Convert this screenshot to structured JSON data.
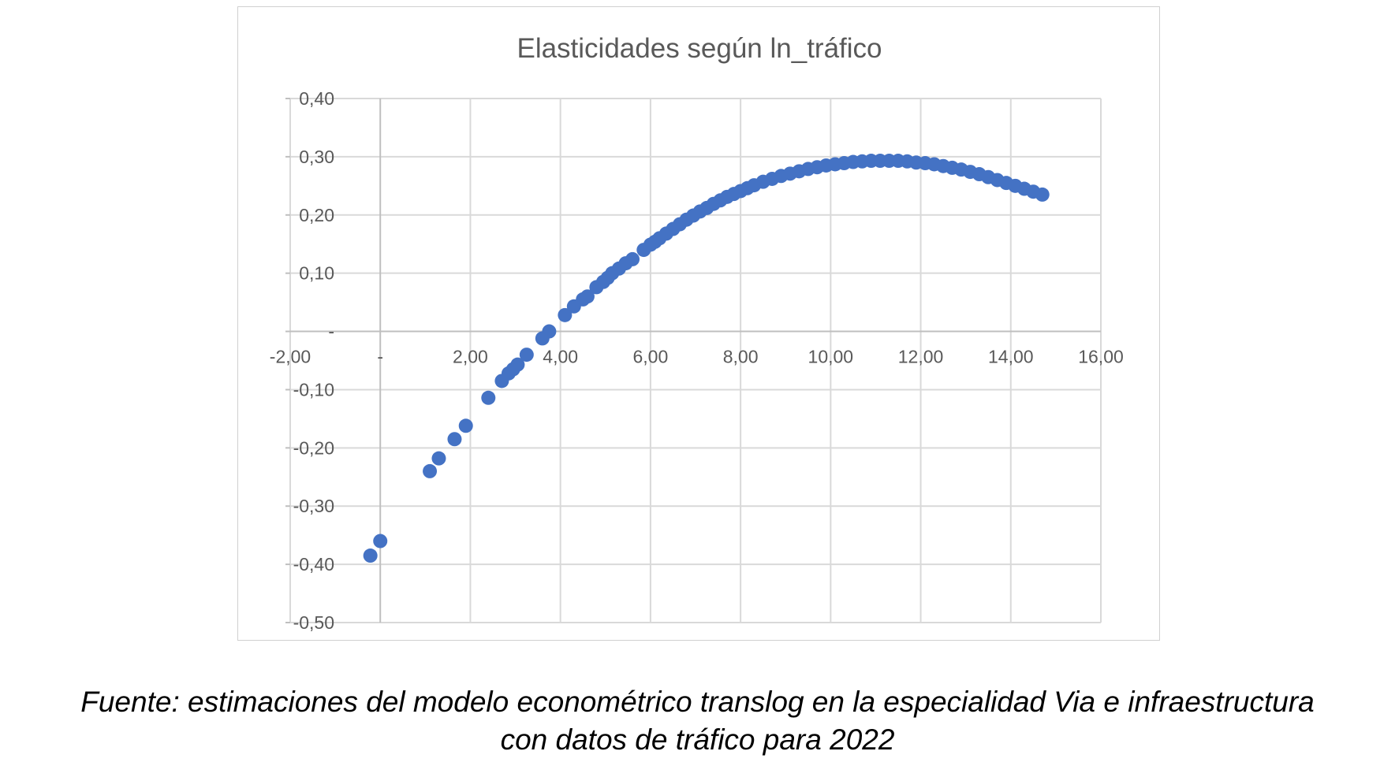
{
  "chart_data": {
    "type": "scatter",
    "title": "Elasticidades según ln_tráfico",
    "xlabel": "",
    "ylabel": "",
    "xlim": [
      -2,
      16
    ],
    "ylim": [
      -0.5,
      0.4
    ],
    "x_ticks": [
      -2,
      0,
      2,
      4,
      6,
      8,
      10,
      12,
      14,
      16
    ],
    "x_tick_labels": [
      "-2,00",
      "-",
      "2,00",
      "4,00",
      "6,00",
      "8,00",
      "10,00",
      "12,00",
      "14,00",
      "16,00"
    ],
    "y_ticks": [
      0.4,
      0.3,
      0.2,
      0.1,
      0,
      -0.1,
      -0.2,
      -0.3,
      -0.4,
      -0.5
    ],
    "y_tick_labels": [
      "0,40",
      "0,30",
      "0,20",
      "0,10",
      "-",
      "-0,10",
      "-0,20",
      "-0,30",
      "-0,40",
      "-0,50"
    ],
    "grid": true,
    "legend": "none",
    "marker_color": "#4472C4",
    "points": [
      [
        -0.22,
        -0.385
      ],
      [
        0.0,
        -0.36
      ],
      [
        1.1,
        -0.24
      ],
      [
        1.3,
        -0.218
      ],
      [
        1.65,
        -0.185
      ],
      [
        1.9,
        -0.162
      ],
      [
        2.4,
        -0.114
      ],
      [
        2.7,
        -0.085
      ],
      [
        2.85,
        -0.072
      ],
      [
        2.95,
        -0.065
      ],
      [
        3.05,
        -0.057
      ],
      [
        3.25,
        -0.04
      ],
      [
        3.6,
        -0.012
      ],
      [
        3.75,
        0.0
      ],
      [
        4.1,
        0.028
      ],
      [
        4.3,
        0.043
      ],
      [
        4.5,
        0.055
      ],
      [
        4.6,
        0.06
      ],
      [
        4.8,
        0.076
      ],
      [
        4.95,
        0.085
      ],
      [
        5.05,
        0.092
      ],
      [
        5.15,
        0.1
      ],
      [
        5.3,
        0.108
      ],
      [
        5.45,
        0.117
      ],
      [
        5.6,
        0.124
      ],
      [
        5.85,
        0.14
      ],
      [
        6.0,
        0.149
      ],
      [
        6.1,
        0.154
      ],
      [
        6.2,
        0.16
      ],
      [
        6.35,
        0.168
      ],
      [
        6.5,
        0.176
      ],
      [
        6.65,
        0.184
      ],
      [
        6.8,
        0.192
      ],
      [
        6.95,
        0.199
      ],
      [
        7.1,
        0.206
      ],
      [
        7.25,
        0.212
      ],
      [
        7.4,
        0.219
      ],
      [
        7.55,
        0.225
      ],
      [
        7.7,
        0.231
      ],
      [
        7.85,
        0.236
      ],
      [
        8.0,
        0.241
      ],
      [
        8.15,
        0.246
      ],
      [
        8.3,
        0.251
      ],
      [
        8.5,
        0.257
      ],
      [
        8.7,
        0.262
      ],
      [
        8.9,
        0.267
      ],
      [
        9.1,
        0.271
      ],
      [
        9.3,
        0.275
      ],
      [
        9.5,
        0.279
      ],
      [
        9.7,
        0.282
      ],
      [
        9.9,
        0.285
      ],
      [
        10.1,
        0.287
      ],
      [
        10.3,
        0.289
      ],
      [
        10.5,
        0.291
      ],
      [
        10.7,
        0.292
      ],
      [
        10.9,
        0.293
      ],
      [
        11.1,
        0.293
      ],
      [
        11.3,
        0.293
      ],
      [
        11.5,
        0.293
      ],
      [
        11.7,
        0.292
      ],
      [
        11.9,
        0.29
      ],
      [
        12.1,
        0.289
      ],
      [
        12.3,
        0.287
      ],
      [
        12.5,
        0.284
      ],
      [
        12.7,
        0.281
      ],
      [
        12.9,
        0.278
      ],
      [
        13.1,
        0.274
      ],
      [
        13.3,
        0.27
      ],
      [
        13.5,
        0.265
      ],
      [
        13.7,
        0.26
      ],
      [
        13.9,
        0.255
      ],
      [
        14.1,
        0.25
      ],
      [
        14.3,
        0.245
      ],
      [
        14.5,
        0.24
      ],
      [
        14.7,
        0.235
      ]
    ]
  },
  "caption": {
    "line1": "Fuente: estimaciones del modelo econométrico translog en la especialidad Via e infraestructura",
    "line2": "con datos de tráfico para 2022"
  }
}
